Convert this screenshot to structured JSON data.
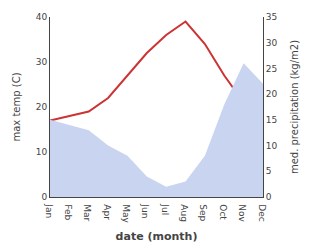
{
  "chart_data": {
    "type": "line",
    "categories": [
      "Jan",
      "Feb",
      "Mar",
      "Apr",
      "May",
      "Jun",
      "Jul",
      "Aug",
      "Sep",
      "Oct",
      "Nov",
      "Dec"
    ],
    "series": [
      {
        "type": "area",
        "color": "#c8d4f0",
        "axis": "y2",
        "values": [
          15,
          14,
          13,
          10,
          8,
          4,
          2,
          3,
          8,
          18,
          26,
          22
        ]
      },
      {
        "type": "line",
        "color": "#cc3333",
        "values": [
          17,
          18,
          19,
          22,
          27,
          32,
          36,
          39,
          34,
          27,
          21,
          18
        ]
      }
    ],
    "xlabel": "date (month)",
    "ylabel": "max temp (C)",
    "y2label": "med. precipitation (kg/m2)",
    "ylim": [
      0,
      40
    ],
    "yticks": [
      0,
      10,
      20,
      30,
      40
    ],
    "y2lim": [
      0,
      35
    ],
    "y2ticks": [
      0,
      5,
      10,
      15,
      20,
      25,
      30,
      35
    ],
    "grid": false,
    "legend": false
  }
}
